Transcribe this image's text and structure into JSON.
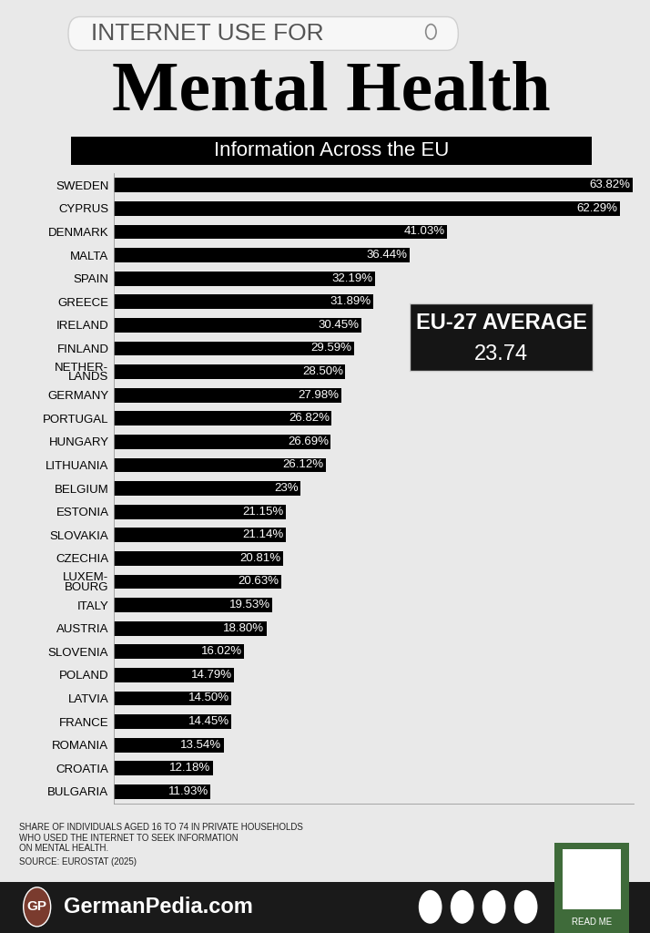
{
  "chart_data": {
    "type": "bar",
    "orientation": "horizontal",
    "title": "Mental Health",
    "subtitle": "Information Across the EU",
    "categories": [
      "SWEDEN",
      "CYPRUS",
      "DENMARK",
      "MALTA",
      "SPAIN",
      "GREECE",
      "IRELAND",
      "FINLAND",
      "NETHER-\nLANDS",
      "GERMANY",
      "PORTUGAL",
      "HUNGARY",
      "LITHUANIA",
      "BELGIUM",
      "ESTONIA",
      "SLOVAKIA",
      "CZECHIA",
      "LUXEM-\nBOURG",
      "ITALY",
      "AUSTRIA",
      "SLOVENIA",
      "POLAND",
      "LATVIA",
      "FRANCE",
      "ROMANIA",
      "CROATIA",
      "BULGARIA"
    ],
    "values": [
      63.82,
      62.29,
      41.03,
      36.44,
      32.19,
      31.89,
      30.45,
      29.59,
      28.5,
      27.98,
      26.82,
      26.69,
      26.12,
      23,
      21.15,
      21.14,
      20.81,
      20.63,
      19.53,
      18.8,
      16.02,
      14.79,
      14.5,
      14.45,
      13.54,
      12.18,
      11.93
    ],
    "value_labels": [
      "63.82%",
      "62.29%",
      "41.03%",
      "36.44%",
      "32.19%",
      "31.89%",
      "30.45%",
      "29.59%",
      "28.50%",
      "27.98%",
      "26.82%",
      "26.69%",
      "26.12%",
      "23%",
      "21.15%",
      "21.14%",
      "20.81%",
      "20.63%",
      "19.53%",
      "18.80%",
      "16.02%",
      "14.79%",
      "14.50%",
      "14.45%",
      "13.54%",
      "12.18%",
      "11.93%"
    ],
    "color": "#000000",
    "xlim": [
      0,
      64
    ],
    "xticks": [],
    "grid": false,
    "data_labels": true,
    "tick_labels": "y",
    "annotations": {
      "search_bar": "INTERNET USE FOR",
      "eu_average": {
        "label": "EU-27 AVERAGE",
        "value": 23.74
      },
      "note": "SHARE OF INDIVIDUALS AGED 16 TO 74 IN PRIVATE HOUSEHOLDS\nWHO USED THE INTERNET TO SEEK INFORMATION\nON MENTAL HEALTH.",
      "source": "SOURCE: EUROSTAT (2025)",
      "logo": "GP",
      "brand": "GermanPedia.com",
      "qr_label": "READ ME"
    }
  }
}
